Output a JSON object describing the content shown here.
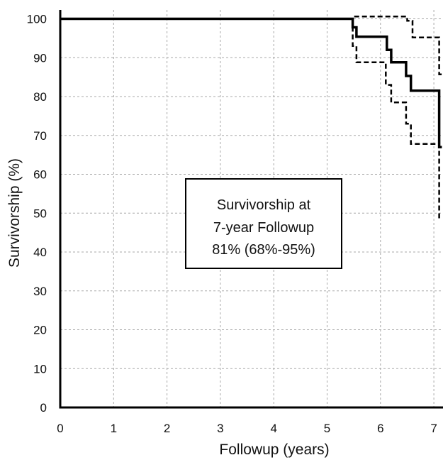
{
  "chart_data": {
    "type": "line",
    "title": "",
    "xlabel": "Followup (years)",
    "ylabel": "Survivorship (%)",
    "xlim": [
      0,
      7.15
    ],
    "ylim": [
      0,
      102
    ],
    "x_ticks": [
      0,
      1,
      2,
      3,
      4,
      5,
      6,
      7
    ],
    "y_ticks": [
      0,
      10,
      20,
      30,
      40,
      50,
      60,
      70,
      80,
      90,
      100
    ],
    "grid": true,
    "series": [
      {
        "style": "solid",
        "color": "#000000",
        "points": [
          [
            0,
            100
          ],
          [
            5.48,
            100
          ],
          [
            5.48,
            97.8
          ],
          [
            5.55,
            97.8
          ],
          [
            5.55,
            95.4
          ],
          [
            6.12,
            95.4
          ],
          [
            6.12,
            92
          ],
          [
            6.2,
            92
          ],
          [
            6.2,
            88.8
          ],
          [
            6.48,
            88.8
          ],
          [
            6.48,
            85.3
          ],
          [
            6.57,
            85.3
          ],
          [
            6.57,
            81.5
          ],
          [
            7.1,
            81.5
          ],
          [
            7.1,
            67
          ],
          [
            7.15,
            67
          ]
        ]
      },
      {
        "style": "dashed",
        "color": "#000000",
        "points": [
          [
            0,
            100
          ],
          [
            5.48,
            100
          ],
          [
            5.48,
            100.6
          ],
          [
            6.5,
            100.6
          ],
          [
            6.5,
            99.5
          ],
          [
            6.6,
            99.5
          ],
          [
            6.6,
            95.2
          ],
          [
            7.1,
            95.2
          ],
          [
            7.1,
            85.7
          ],
          [
            7.15,
            85.7
          ]
        ]
      },
      {
        "style": "dashed",
        "color": "#000000",
        "points": [
          [
            5.48,
            100
          ],
          [
            5.48,
            93
          ],
          [
            5.55,
            93
          ],
          [
            5.55,
            88.8
          ],
          [
            6.1,
            88.8
          ],
          [
            6.1,
            83
          ],
          [
            6.2,
            83
          ],
          [
            6.2,
            78.5
          ],
          [
            6.48,
            78.5
          ],
          [
            6.48,
            73
          ],
          [
            6.57,
            73
          ],
          [
            6.57,
            67.8
          ],
          [
            7.1,
            67.8
          ],
          [
            7.1,
            48
          ]
        ]
      }
    ],
    "annotation": {
      "lines": [
        "Survivorship at",
        "7-year Followup",
        "81% (68%-95%)"
      ]
    }
  }
}
